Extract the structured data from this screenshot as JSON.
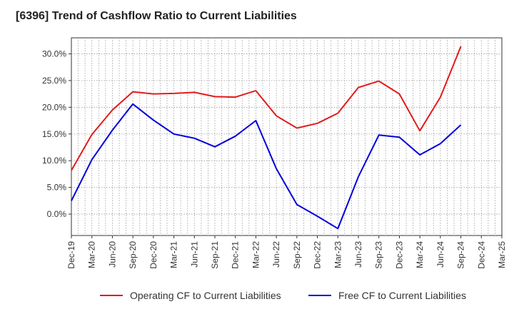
{
  "chart_data": {
    "type": "line",
    "title": "[6396]  Trend of Cashflow Ratio to Current Liabilities",
    "xlabel": "",
    "ylabel": "",
    "categories": [
      "Dec-19",
      "Mar-20",
      "Jun-20",
      "Sep-20",
      "Dec-20",
      "Mar-21",
      "Jun-21",
      "Sep-21",
      "Dec-21",
      "Mar-22",
      "Jun-22",
      "Sep-22",
      "Dec-22",
      "Mar-23",
      "Jun-23",
      "Sep-23",
      "Dec-23",
      "Mar-24",
      "Jun-24",
      "Sep-24",
      "Dec-24",
      "Mar-25"
    ],
    "ylim": [
      -4,
      33
    ],
    "yticks": [
      0,
      5,
      10,
      15,
      20,
      25,
      30
    ],
    "ytick_labels": [
      "0.0%",
      "5.0%",
      "10.0%",
      "15.0%",
      "20.0%",
      "25.0%",
      "30.0%"
    ],
    "grid": true,
    "legend_position": "bottom",
    "series": [
      {
        "name": "Operating CF to Current Liabilities",
        "color": "#e31a1c",
        "values": [
          8.2,
          14.9,
          19.5,
          22.9,
          22.5,
          22.6,
          22.8,
          22.0,
          21.9,
          23.1,
          18.4,
          16.1,
          17.0,
          18.9,
          23.7,
          24.9,
          22.5,
          15.6,
          21.9,
          31.4,
          null,
          null
        ]
      },
      {
        "name": "Free CF to Current Liabilities",
        "color": "#0000dd",
        "values": [
          2.5,
          10.2,
          15.7,
          20.6,
          17.6,
          15.0,
          14.2,
          12.6,
          14.6,
          17.5,
          8.5,
          1.8,
          -0.4,
          -2.7,
          7.0,
          14.8,
          14.4,
          11.1,
          13.2,
          16.7,
          null,
          null
        ]
      }
    ]
  }
}
